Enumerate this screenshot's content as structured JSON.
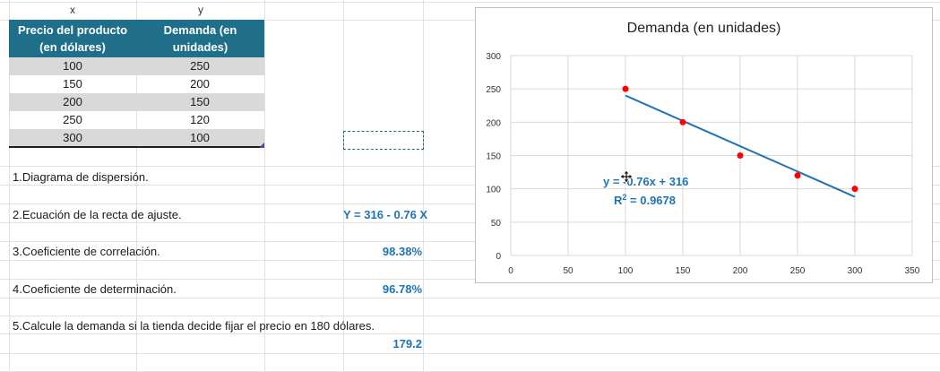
{
  "column_letters": {
    "x": "x",
    "y": "y"
  },
  "table": {
    "headers": [
      "Precio del producto (en dólares)",
      "Demanda (en unidades)"
    ],
    "header_lines": [
      [
        "Precio del producto",
        "(en dólares)"
      ],
      [
        "Demanda (en",
        "unidades)"
      ]
    ],
    "rows": [
      [
        "100",
        "250"
      ],
      [
        "150",
        "200"
      ],
      [
        "200",
        "150"
      ],
      [
        "250",
        "120"
      ],
      [
        "300",
        "100"
      ]
    ]
  },
  "questions": [
    {
      "text": "1.Diagrama de dispersión.",
      "answer": ""
    },
    {
      "text": "2.Ecuación de la recta de ajuste.",
      "answer": "Y = 316 - 0.76 X"
    },
    {
      "text": "3.Coeficiente de correlación.",
      "answer": "98.38%"
    },
    {
      "text": "4.Coeficiente de determinación.",
      "answer": "96.78%"
    },
    {
      "text": "5.Calcule la demanda si la tienda decide fijar el precio en 180 dólares.",
      "answer": "179.2"
    }
  ],
  "colors": {
    "header_bg": "#1f6f8b",
    "answer_text": "#1f73b7",
    "point": "#ff0000",
    "trendline": "#1f73b7"
  },
  "chart_data": {
    "type": "scatter",
    "title": "Demanda (en unidades)",
    "x": [
      100,
      150,
      200,
      250,
      300
    ],
    "y": [
      250,
      200,
      150,
      120,
      100
    ],
    "xlim": [
      0,
      350
    ],
    "ylim": [
      0,
      300
    ],
    "x_ticks": [
      0,
      50,
      100,
      150,
      200,
      250,
      300,
      350
    ],
    "y_ticks": [
      0,
      50,
      100,
      150,
      200,
      250,
      300
    ],
    "grid": true,
    "trendline": {
      "slope": -0.76,
      "intercept": 316,
      "x_range": [
        100,
        300
      ]
    },
    "annotation_equation": "y = -0.76x + 316",
    "annotation_r2_prefix": "R",
    "annotation_r2_sup": "2",
    "annotation_r2_value": " = 0.9678"
  }
}
